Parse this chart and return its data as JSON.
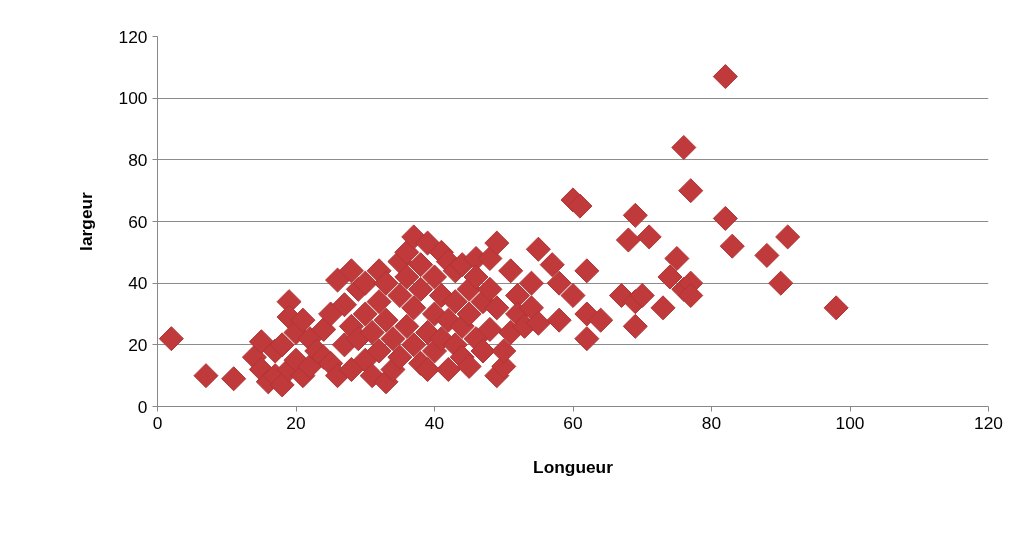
{
  "chart_data": {
    "type": "scatter",
    "xlabel": "Longueur",
    "ylabel": "largeur",
    "marker": "diamond",
    "grid": "y",
    "xlim": [
      0,
      120
    ],
    "xticks": [
      0,
      20,
      40,
      60,
      80,
      100,
      120
    ],
    "ylim": [
      0,
      120
    ],
    "yticks": [
      0,
      20,
      40,
      60,
      80,
      100,
      120
    ],
    "series": [
      {
        "color": "#c0393b",
        "x": [
          2,
          7,
          11,
          14,
          15,
          15,
          16,
          17,
          17,
          18,
          18,
          19,
          19,
          19,
          20,
          20,
          21,
          21,
          22,
          22,
          23,
          24,
          24,
          25,
          25,
          26,
          26,
          27,
          27,
          28,
          28,
          28,
          29,
          29,
          30,
          30,
          30,
          31,
          31,
          32,
          32,
          32,
          33,
          33,
          33,
          34,
          34,
          35,
          35,
          35,
          36,
          36,
          36,
          37,
          37,
          37,
          38,
          38,
          38,
          39,
          39,
          39,
          40,
          40,
          40,
          41,
          41,
          41,
          42,
          42,
          42,
          43,
          43,
          43,
          44,
          44,
          44,
          45,
          45,
          45,
          46,
          46,
          46,
          47,
          47,
          48,
          48,
          48,
          49,
          49,
          49,
          50,
          50,
          51,
          51,
          52,
          52,
          53,
          54,
          54,
          55,
          55,
          57,
          58,
          58,
          60,
          60,
          61,
          62,
          62,
          62,
          64,
          67,
          68,
          69,
          69,
          69,
          70,
          71,
          73,
          74,
          75,
          76,
          76,
          77,
          77,
          77,
          82,
          82,
          83,
          88,
          90,
          91,
          98
        ],
        "values": [
          22,
          10,
          9,
          16,
          12,
          21,
          8,
          10,
          18,
          7,
          20,
          12,
          34,
          29,
          15,
          24,
          10,
          28,
          13,
          22,
          18,
          16,
          25,
          14,
          30,
          10,
          41,
          20,
          33,
          44,
          12,
          26,
          22,
          38,
          15,
          30,
          40,
          10,
          24,
          34,
          44,
          18,
          8,
          28,
          40,
          12,
          22,
          36,
          47,
          16,
          26,
          42,
          50,
          55,
          20,
          32,
          14,
          38,
          46,
          24,
          12,
          53,
          18,
          30,
          42,
          22,
          36,
          50,
          47,
          12,
          28,
          20,
          34,
          44,
          16,
          26,
          46,
          13,
          38,
          30,
          22,
          48,
          42,
          18,
          34,
          25,
          48,
          38,
          32,
          53,
          10,
          13,
          18,
          24,
          44,
          36,
          30,
          26,
          40,
          32,
          51,
          27,
          46,
          28,
          40,
          36,
          67,
          65,
          44,
          30,
          22,
          28,
          36,
          54,
          62,
          34,
          26,
          36,
          55,
          32,
          42,
          48,
          84,
          38,
          70,
          40,
          36,
          107,
          61,
          52,
          49,
          40,
          55,
          32
        ]
      }
    ]
  }
}
